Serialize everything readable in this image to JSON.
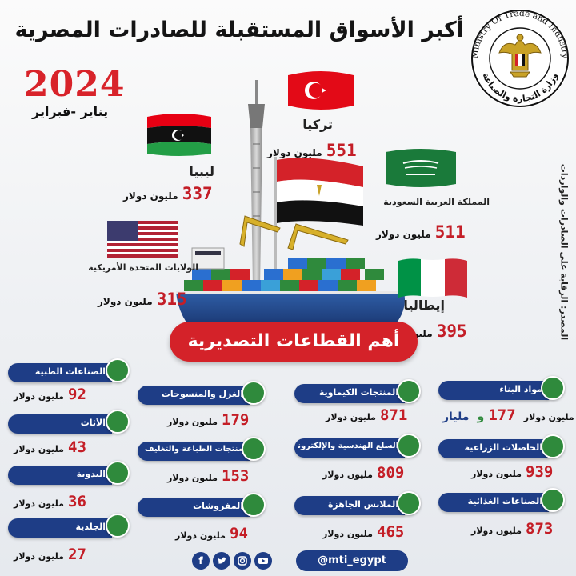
{
  "header": {
    "title": "أكبر الأسواق المستقبلة للصادرات المصرية",
    "year": "2024",
    "period": "يناير -فبراير",
    "source": "المصدر: الرقابة على الصادرات والواردات",
    "logo_text": "Ministry Of Trade and Industry",
    "logo_text_ar": "وزارة التجارة والصناعة"
  },
  "markets": [
    {
      "name": "تركيا",
      "value": "551",
      "unit": "مليون دولار"
    },
    {
      "name": "ليبيا",
      "value": "337",
      "unit": "مليون دولار"
    },
    {
      "name": "المملكة العربية السعودية",
      "value": "511",
      "unit": "مليون دولار"
    },
    {
      "name": "الولايات المتحدة الأمريكية",
      "value": "315",
      "unit": "مليون دولار"
    },
    {
      "name": "إيطاليا",
      "value": "395",
      "unit": "مليون دولار"
    }
  ],
  "sectors_title": "أهم القطاعات التصديرية",
  "sectors": [
    {
      "name": "مواد البناء",
      "value": "177",
      "extra": "مليار",
      "and": "و",
      "unit": "مليون دولار"
    },
    {
      "name": "الحاصلات الزراعية",
      "value": "939",
      "unit": "مليون دولار"
    },
    {
      "name": "الصناعات الغذائية",
      "value": "873",
      "unit": "مليون دولار"
    },
    {
      "name": "المنتجات الكيماوية",
      "value": "871",
      "unit": "مليون دولار"
    },
    {
      "name": "السلع الهندسية والإلكترونية",
      "value": "809",
      "unit": "مليون دولار"
    },
    {
      "name": "الملابس الجاهزة",
      "value": "465",
      "unit": "مليون دولار"
    },
    {
      "name": "الغزل والمنسوجات",
      "value": "179",
      "unit": "مليون دولار"
    },
    {
      "name": "منتجات الطباعة والتغليف",
      "value": "153",
      "unit": "مليون دولار"
    },
    {
      "name": "المفروشات",
      "value": "94",
      "unit": "مليون دولار"
    },
    {
      "name": "الصناعات الطبية",
      "value": "92",
      "unit": "مليون دولار"
    },
    {
      "name": "الأثاث",
      "value": "43",
      "unit": "مليون دولار"
    },
    {
      "name": "اليدوية",
      "value": "36",
      "unit": "مليون دولار"
    },
    {
      "name": "الجلدية",
      "value": "27",
      "unit": "مليون دولار"
    }
  ],
  "footer": {
    "handle": "@mti_egypt",
    "icons": [
      "facebook-icon",
      "twitter-icon",
      "instagram-icon",
      "youtube-icon"
    ]
  },
  "colors": {
    "accent_red": "#c41e27",
    "banner_red": "#d42229",
    "label_blue": "#1e3d86",
    "dot_green": "#2f8a3c"
  }
}
